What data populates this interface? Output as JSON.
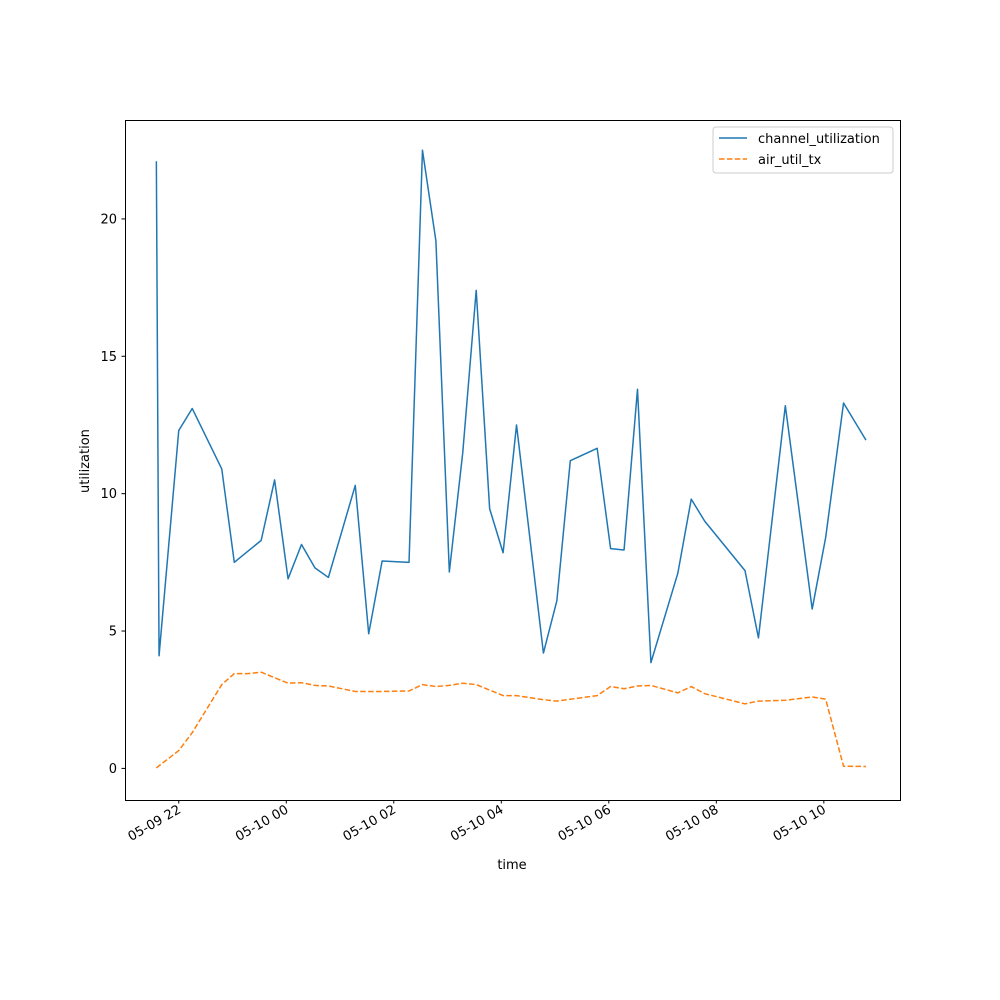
{
  "chart_data": {
    "type": "line",
    "xlabel": "time",
    "ylabel": "utilization",
    "x_ticks": [
      "05-09 22",
      "05-10 00",
      "05-10 02",
      "05-10 04",
      "05-10 06",
      "05-10 08",
      "05-10 10"
    ],
    "y_ticks": [
      "0",
      "5",
      "10",
      "15",
      "20"
    ],
    "ylim": [
      -1.15,
      23.6
    ],
    "xlim": [
      "2024-05-09T21:00",
      "2024-05-10T11:25"
    ],
    "grid": false,
    "legend_position": "upper right",
    "series": [
      {
        "name": "channel_utilization",
        "color": "#1f77b4",
        "style": "solid",
        "points": [
          [
            "2024-05-09T21:35",
            22.1
          ],
          [
            "2024-05-09T21:38",
            4.1
          ],
          [
            "2024-05-09T22:00",
            12.3
          ],
          [
            "2024-05-09T22:15",
            13.1
          ],
          [
            "2024-05-09T22:48",
            10.9
          ],
          [
            "2024-05-09T23:02",
            7.5
          ],
          [
            "2024-05-09T23:17",
            7.9
          ],
          [
            "2024-05-09T23:32",
            8.3
          ],
          [
            "2024-05-09T23:47",
            10.5
          ],
          [
            "2024-05-10T00:02",
            6.9
          ],
          [
            "2024-05-10T00:17",
            8.15
          ],
          [
            "2024-05-10T00:32",
            7.3
          ],
          [
            "2024-05-10T00:47",
            6.95
          ],
          [
            "2024-05-10T01:17",
            10.3
          ],
          [
            "2024-05-10T01:32",
            4.9
          ],
          [
            "2024-05-10T01:47",
            7.55
          ],
          [
            "2024-05-10T02:17",
            7.5
          ],
          [
            "2024-05-10T02:32",
            22.5
          ],
          [
            "2024-05-10T02:47",
            19.2
          ],
          [
            "2024-05-10T03:02",
            7.15
          ],
          [
            "2024-05-10T03:17",
            11.5
          ],
          [
            "2024-05-10T03:32",
            17.4
          ],
          [
            "2024-05-10T03:47",
            9.45
          ],
          [
            "2024-05-10T04:02",
            7.85
          ],
          [
            "2024-05-10T04:17",
            12.5
          ],
          [
            "2024-05-10T04:47",
            4.2
          ],
          [
            "2024-05-10T05:02",
            6.1
          ],
          [
            "2024-05-10T05:17",
            11.2
          ],
          [
            "2024-05-10T05:47",
            11.65
          ],
          [
            "2024-05-10T06:02",
            8.0
          ],
          [
            "2024-05-10T06:17",
            7.95
          ],
          [
            "2024-05-10T06:32",
            13.8
          ],
          [
            "2024-05-10T06:47",
            3.85
          ],
          [
            "2024-05-10T07:17",
            7.1
          ],
          [
            "2024-05-10T07:32",
            9.8
          ],
          [
            "2024-05-10T07:47",
            9.0
          ],
          [
            "2024-05-10T08:32",
            7.2
          ],
          [
            "2024-05-10T08:47",
            4.75
          ],
          [
            "2024-05-10T09:17",
            13.2
          ],
          [
            "2024-05-10T09:47",
            5.8
          ],
          [
            "2024-05-10T10:02",
            8.4
          ],
          [
            "2024-05-10T10:22",
            13.3
          ],
          [
            "2024-05-10T10:47",
            11.95
          ]
        ]
      },
      {
        "name": "air_util_tx",
        "color": "#ff7f0e",
        "style": "dashed",
        "points": [
          [
            "2024-05-09T21:35",
            0.02
          ],
          [
            "2024-05-09T22:00",
            0.65
          ],
          [
            "2024-05-09T22:15",
            1.3
          ],
          [
            "2024-05-09T22:48",
            3.05
          ],
          [
            "2024-05-09T23:02",
            3.45
          ],
          [
            "2024-05-09T23:17",
            3.45
          ],
          [
            "2024-05-09T23:32",
            3.5
          ],
          [
            "2024-05-09T23:47",
            3.3
          ],
          [
            "2024-05-10T00:02",
            3.1
          ],
          [
            "2024-05-10T00:17",
            3.12
          ],
          [
            "2024-05-10T00:32",
            3.02
          ],
          [
            "2024-05-10T00:47",
            3.0
          ],
          [
            "2024-05-10T01:17",
            2.8
          ],
          [
            "2024-05-10T01:47",
            2.8
          ],
          [
            "2024-05-10T02:17",
            2.82
          ],
          [
            "2024-05-10T02:32",
            3.05
          ],
          [
            "2024-05-10T02:47",
            2.98
          ],
          [
            "2024-05-10T03:02",
            3.02
          ],
          [
            "2024-05-10T03:17",
            3.1
          ],
          [
            "2024-05-10T03:32",
            3.05
          ],
          [
            "2024-05-10T04:02",
            2.65
          ],
          [
            "2024-05-10T04:17",
            2.65
          ],
          [
            "2024-05-10T04:47",
            2.5
          ],
          [
            "2024-05-10T05:02",
            2.45
          ],
          [
            "2024-05-10T05:47",
            2.65
          ],
          [
            "2024-05-10T06:02",
            2.98
          ],
          [
            "2024-05-10T06:17",
            2.9
          ],
          [
            "2024-05-10T06:32",
            3.0
          ],
          [
            "2024-05-10T06:47",
            3.02
          ],
          [
            "2024-05-10T07:17",
            2.75
          ],
          [
            "2024-05-10T07:32",
            2.98
          ],
          [
            "2024-05-10T07:47",
            2.72
          ],
          [
            "2024-05-10T08:32",
            2.35
          ],
          [
            "2024-05-10T08:47",
            2.45
          ],
          [
            "2024-05-10T09:17",
            2.48
          ],
          [
            "2024-05-10T09:47",
            2.6
          ],
          [
            "2024-05-10T10:02",
            2.52
          ],
          [
            "2024-05-10T10:22",
            0.08
          ],
          [
            "2024-05-10T10:47",
            0.07
          ]
        ]
      }
    ]
  }
}
